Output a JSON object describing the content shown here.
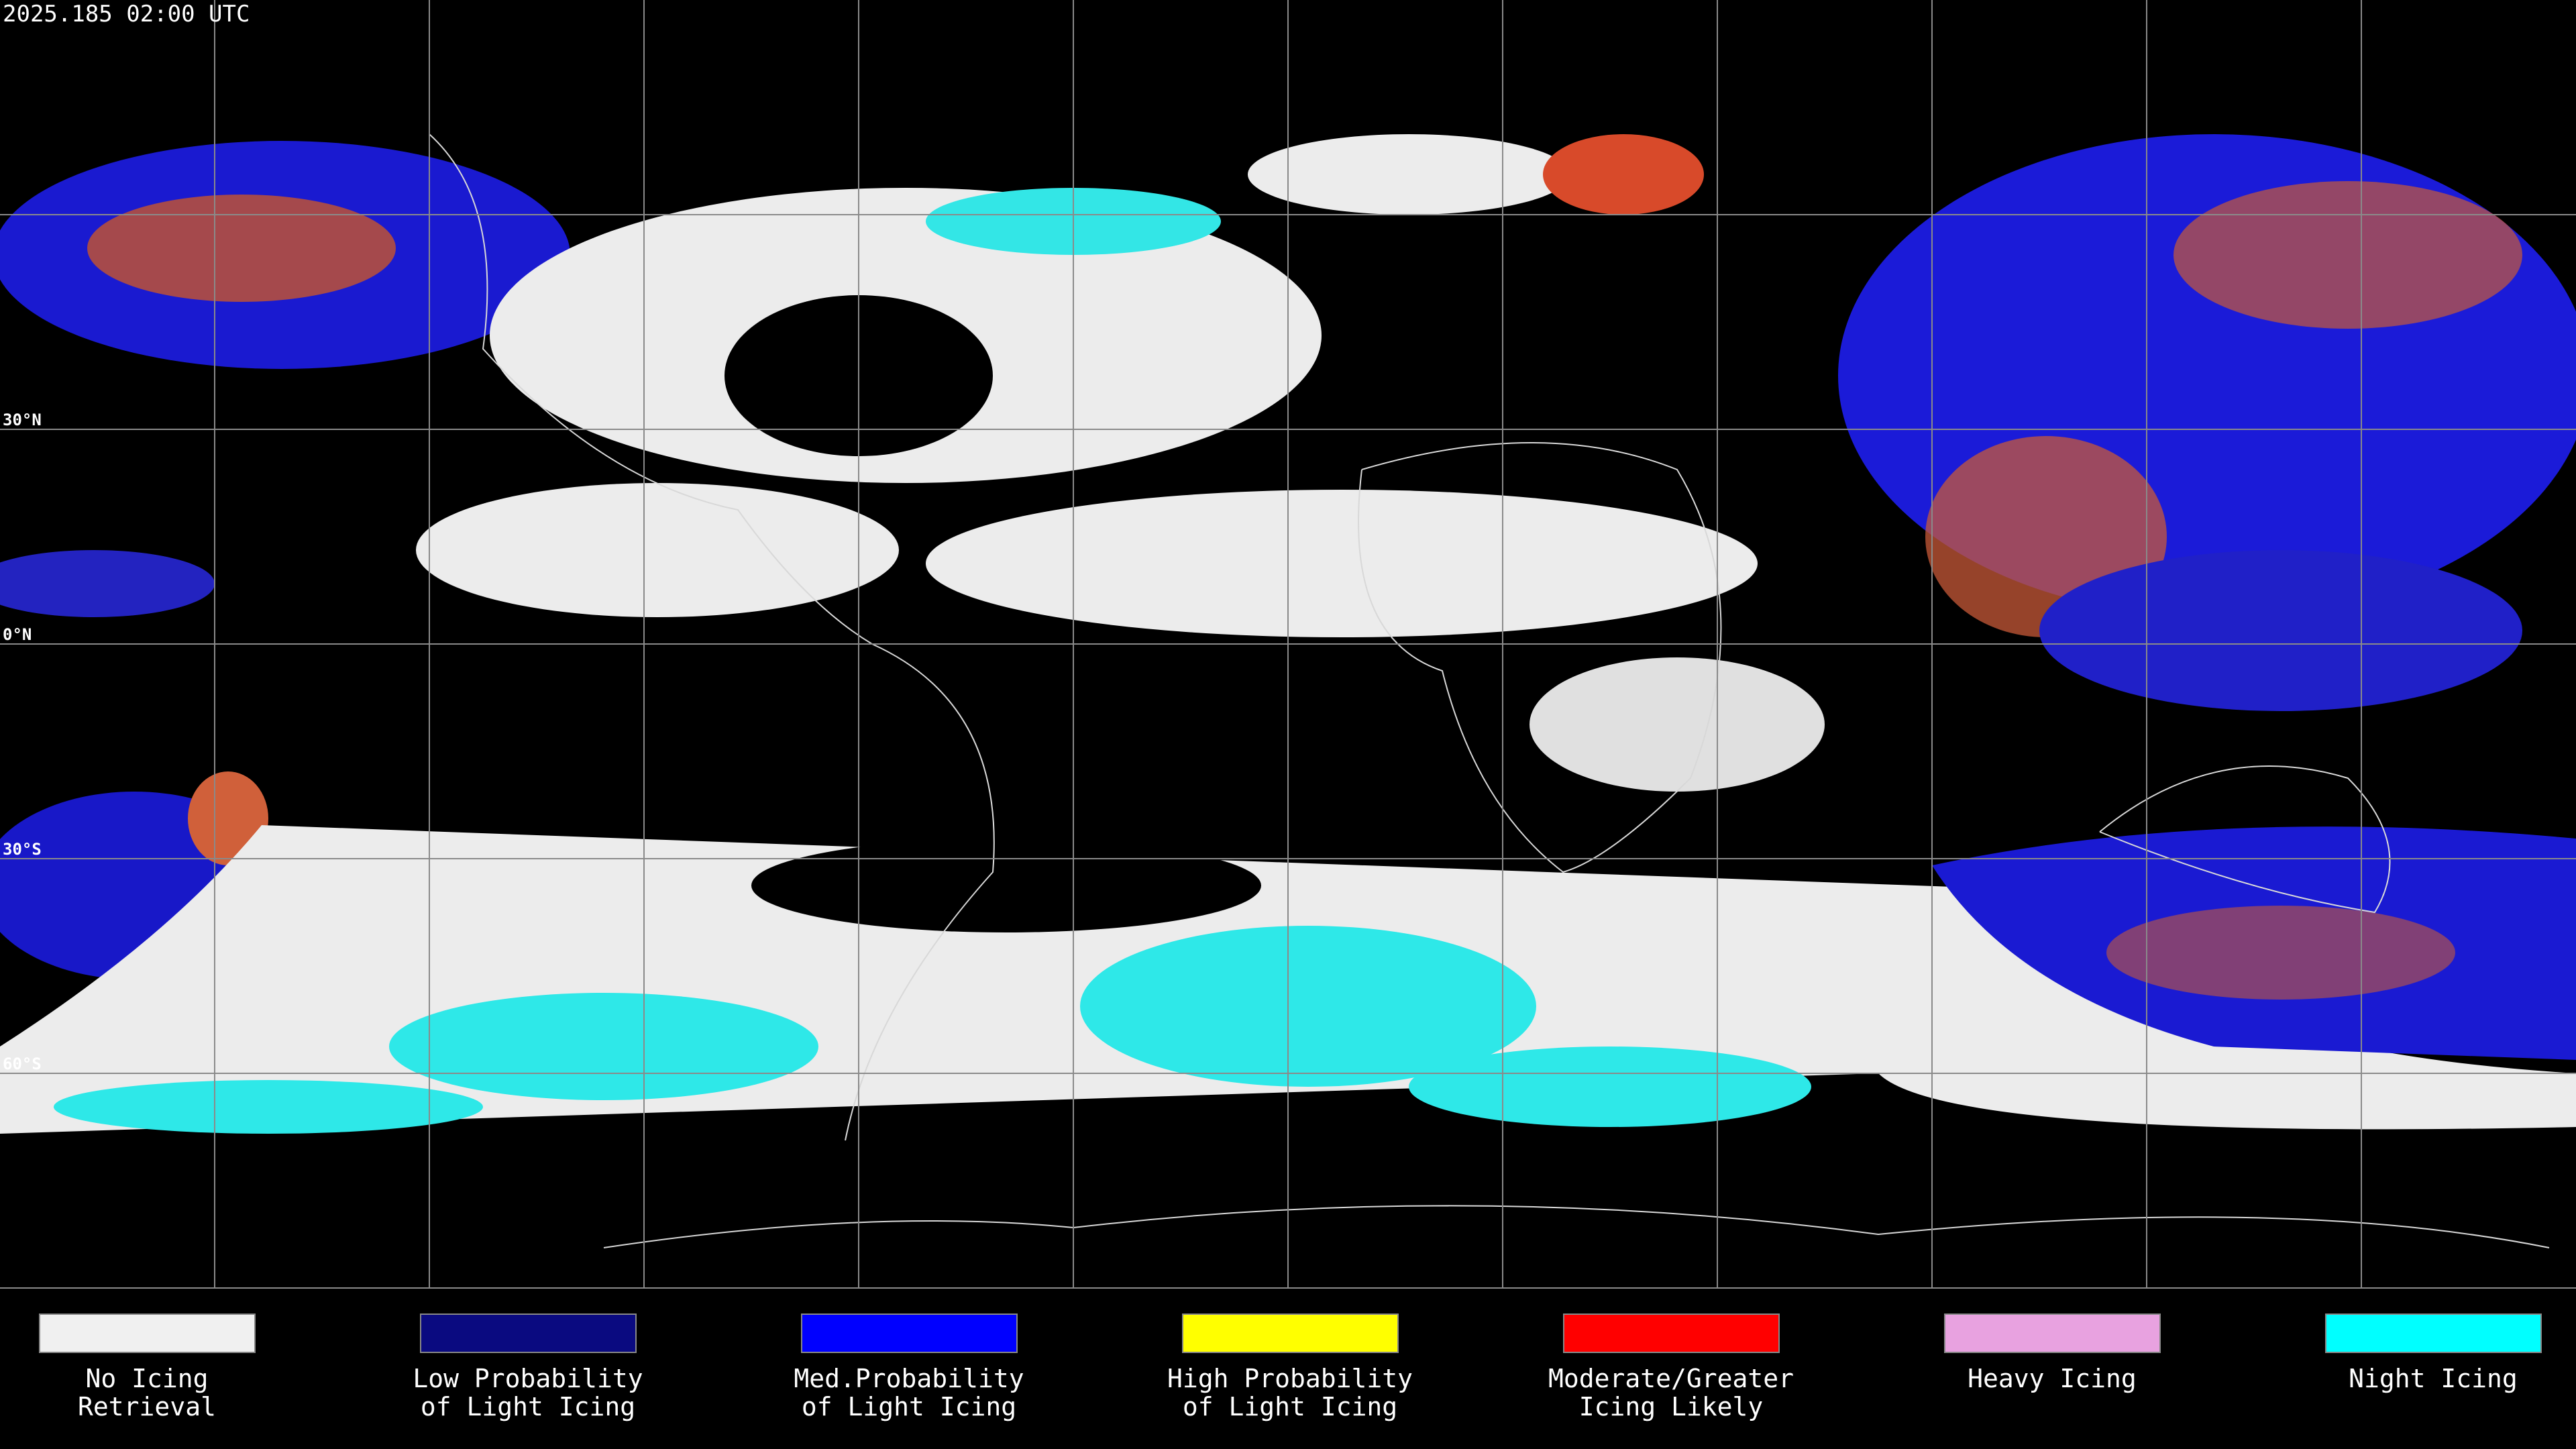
{
  "header": {
    "timestamp": "2025.185 02:00 UTC"
  },
  "latitude_labels": [
    {
      "label": "30°N",
      "lat": 30
    },
    {
      "label": "0°N",
      "lat": 0
    },
    {
      "label": "30°S",
      "lat": -30
    },
    {
      "label": "60°S",
      "lat": -60
    }
  ],
  "legend": [
    {
      "color": "#f0f0f0",
      "label": [
        "No Icing",
        "Retrieval"
      ]
    },
    {
      "color": "#0a0a80",
      "label": [
        "Low Probability",
        "of Light Icing"
      ]
    },
    {
      "color": "#0000ff",
      "label": [
        "Med.Probability",
        "of Light Icing"
      ]
    },
    {
      "color": "#ffff00",
      "label": [
        "High Probability",
        "of Light Icing"
      ]
    },
    {
      "color": "#ff0000",
      "label": [
        "Moderate/Greater",
        "Icing Likely"
      ]
    },
    {
      "color": "#e8a2e0",
      "label": [
        "Heavy Icing"
      ]
    },
    {
      "color": "#00ffff",
      "label": [
        "Night Icing"
      ]
    }
  ]
}
